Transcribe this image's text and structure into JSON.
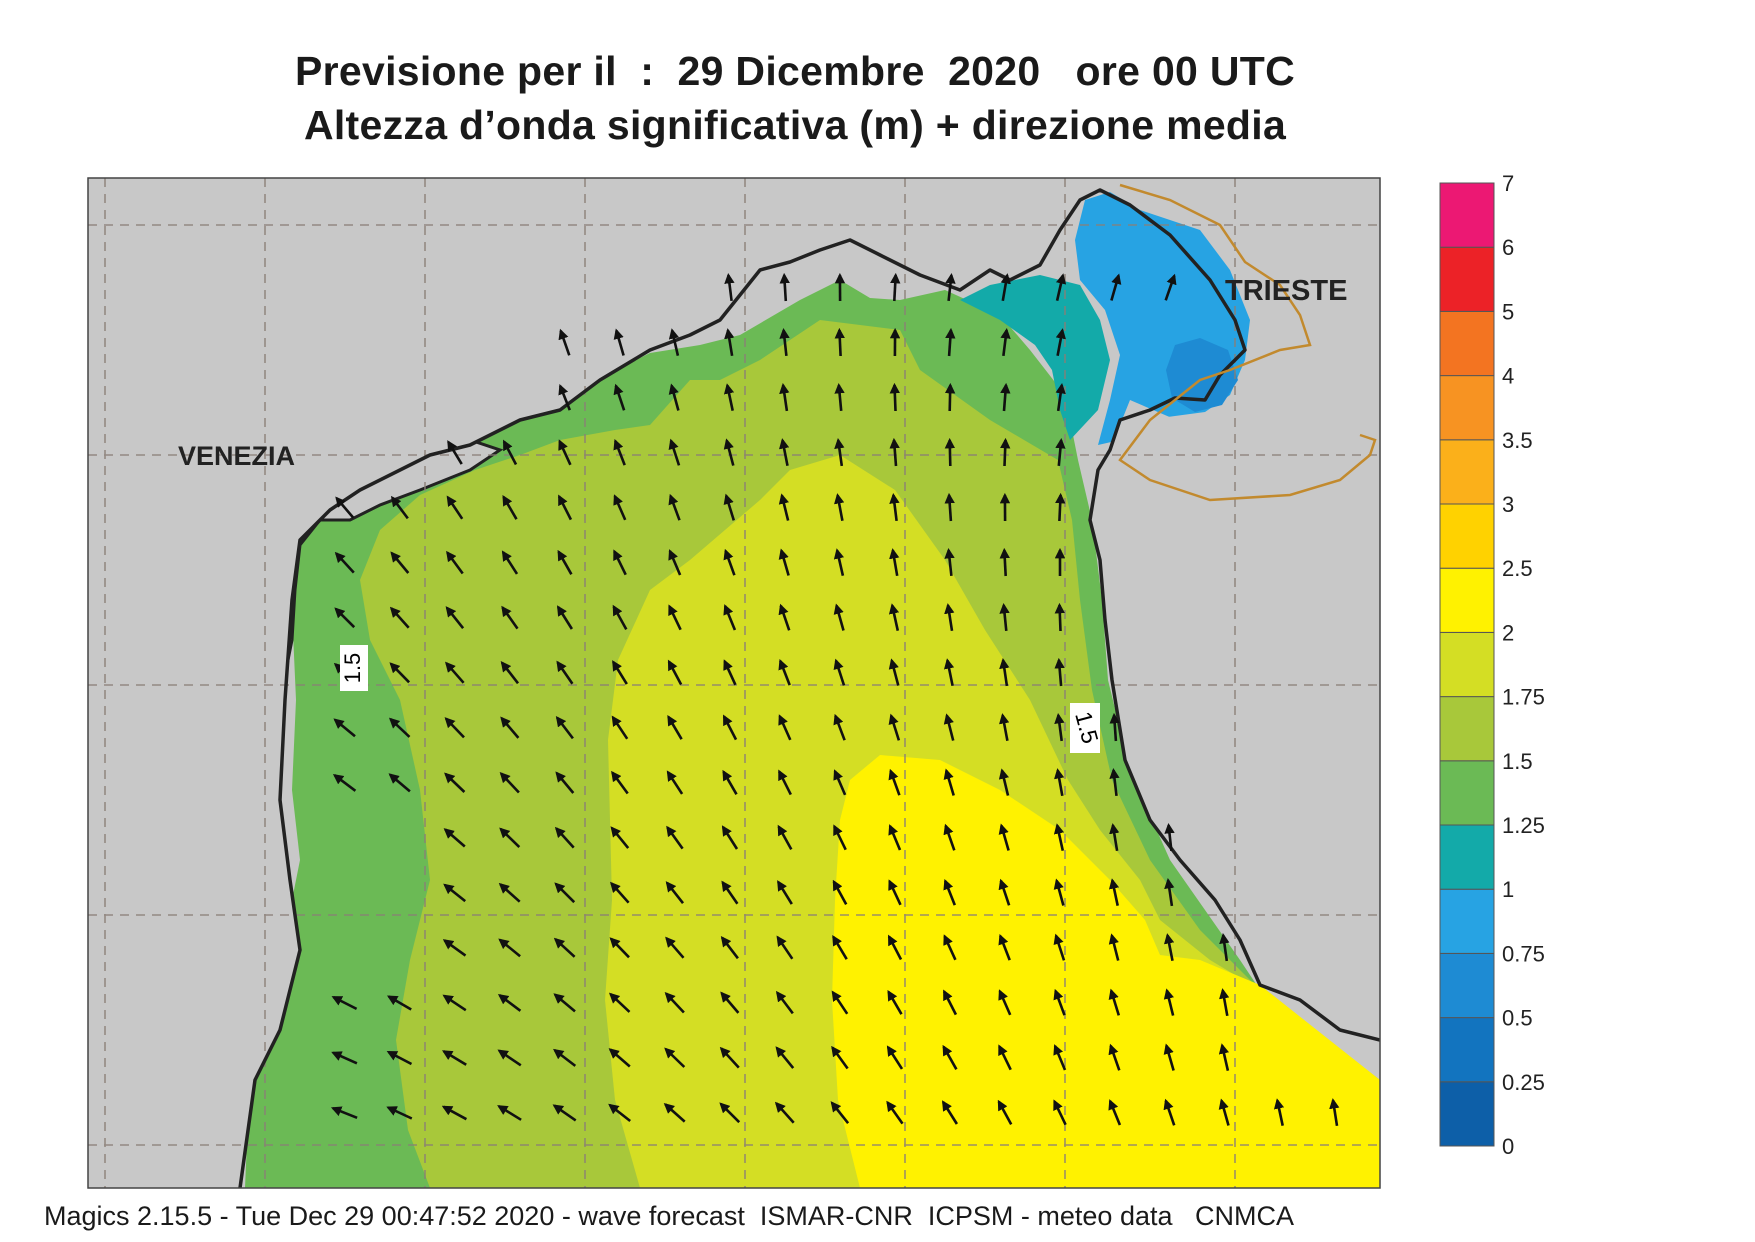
{
  "title_line1": "Previsione per il  :  29 Dicembre  2020   ore 00 UTC",
  "title_line2": "Altezza d’onda significativa (m) + direzione media",
  "city_labels": [
    "VENEZIA",
    "TRIESTE"
  ],
  "contour_labels": [
    "1.5",
    "1.5"
  ],
  "footer": "Magics 2.15.5 - Tue Dec 29 00:47:52 2020 - wave forecast  ISMAR-CNR  ICPSM - meteo data   CNMCA",
  "legend": {
    "ticks": [
      "7",
      "6",
      "5",
      "4",
      "3.5",
      "3",
      "2.5",
      "2",
      "1.75",
      "1.5",
      "1.25",
      "1",
      "0.75",
      "0.5",
      "0.25",
      "0"
    ],
    "colors": [
      "#0d5fa8",
      "#1274bf",
      "#1e8bd3",
      "#27a3e3",
      "#13aaa9",
      "#6bba55",
      "#a8c83a",
      "#d4de24",
      "#fff200",
      "#ffd200",
      "#fbb01a",
      "#f79322",
      "#f37421",
      "#ec2227",
      "#ec1873"
    ]
  },
  "colors": {
    "land": "#c8c8c8",
    "coast": "#222222",
    "border": "#c28a2e",
    "grid": "#8a7f77"
  }
}
